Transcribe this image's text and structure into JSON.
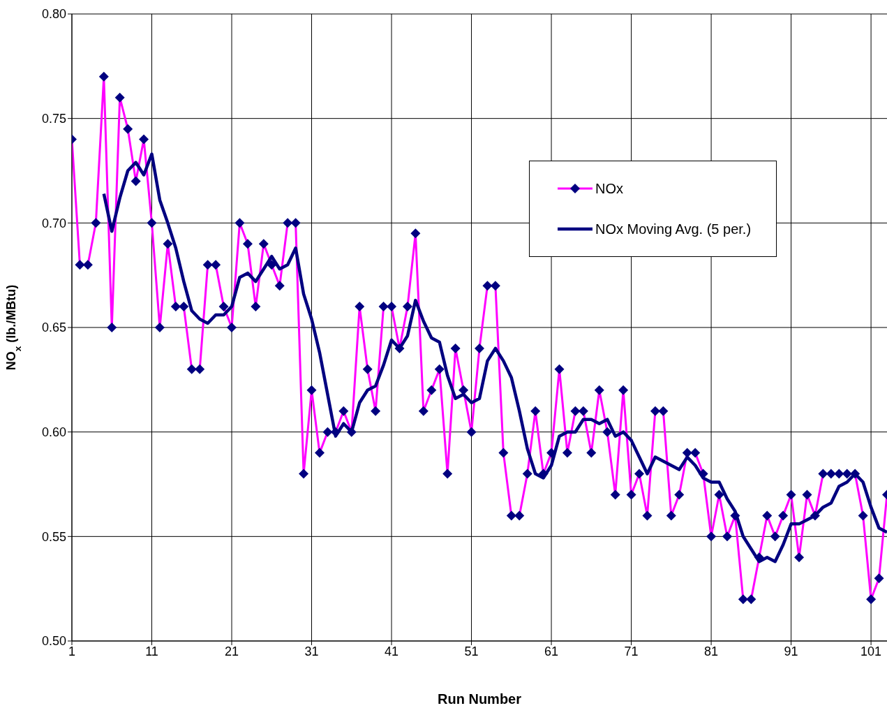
{
  "chart_data": {
    "type": "line",
    "xlabel": "Run Number",
    "ylabel": "NO$_{x}$ (lb./MBtu)",
    "x": [
      1,
      2,
      3,
      4,
      5,
      6,
      7,
      8,
      9,
      10,
      11,
      12,
      13,
      14,
      15,
      16,
      17,
      18,
      19,
      20,
      21,
      22,
      23,
      24,
      25,
      26,
      27,
      28,
      29,
      30,
      31,
      32,
      33,
      34,
      35,
      36,
      37,
      38,
      39,
      40,
      41,
      42,
      43,
      44,
      45,
      46,
      47,
      48,
      49,
      50,
      51,
      52,
      53,
      54,
      55,
      56,
      57,
      58,
      59,
      60,
      61,
      62,
      63,
      64,
      65,
      66,
      67,
      68,
      69,
      70,
      71,
      72,
      73,
      74,
      75,
      76,
      77,
      78,
      79,
      80,
      81,
      82,
      83,
      84,
      85,
      86,
      87,
      88,
      89,
      90,
      91,
      92,
      93,
      94,
      95,
      96,
      97,
      98,
      99,
      100,
      101,
      102,
      103
    ],
    "series": [
      {
        "name": "NOx",
        "color": "#ff00ff",
        "marker": "diamond",
        "values": [
          0.74,
          0.68,
          0.68,
          0.7,
          0.77,
          0.65,
          0.76,
          0.745,
          0.72,
          0.74,
          0.7,
          0.65,
          0.69,
          0.66,
          0.66,
          0.63,
          0.63,
          0.68,
          0.68,
          0.66,
          0.65,
          0.7,
          0.69,
          0.66,
          0.69,
          0.68,
          0.67,
          0.7,
          0.7,
          0.58,
          0.62,
          0.59,
          0.6,
          0.6,
          0.61,
          0.6,
          0.66,
          0.63,
          0.61,
          0.66,
          0.66,
          0.64,
          0.66,
          0.695,
          0.61,
          0.62,
          0.63,
          0.58,
          0.64,
          0.62,
          0.6,
          0.64,
          0.67,
          0.67,
          0.59,
          0.56,
          0.56,
          0.58,
          0.61,
          0.58,
          0.59,
          0.63,
          0.59,
          0.61,
          0.61,
          0.59,
          0.62,
          0.6,
          0.57,
          0.62,
          0.57,
          0.58,
          0.56,
          0.61,
          0.61,
          0.56,
          0.57,
          0.59,
          0.59,
          0.58,
          0.55,
          0.57,
          0.55,
          0.56,
          0.52,
          0.52,
          0.54,
          0.56,
          0.55,
          0.56,
          0.57,
          0.54,
          0.57,
          0.56,
          0.58,
          0.58,
          0.58,
          0.58,
          0.58,
          0.56,
          0.52,
          0.53,
          0.57
        ]
      },
      {
        "name": "NOx Moving Avg. (5 per.)",
        "color": "#000080",
        "marker": "none",
        "values": [
          null,
          null,
          null,
          null,
          0.714,
          0.696,
          0.712,
          0.725,
          0.729,
          0.723,
          0.733,
          0.711,
          0.7,
          0.688,
          0.672,
          0.658,
          0.654,
          0.652,
          0.656,
          0.656,
          0.66,
          0.674,
          0.676,
          0.672,
          0.678,
          0.684,
          0.678,
          0.68,
          0.688,
          0.666,
          0.654,
          0.638,
          0.618,
          0.598,
          0.604,
          0.6,
          0.614,
          0.62,
          0.622,
          0.632,
          0.644,
          0.64,
          0.646,
          0.663,
          0.653,
          0.645,
          0.643,
          0.627,
          0.616,
          0.618,
          0.614,
          0.616,
          0.634,
          0.64,
          0.634,
          0.626,
          0.61,
          0.592,
          0.58,
          0.578,
          0.584,
          0.598,
          0.6,
          0.6,
          0.606,
          0.606,
          0.604,
          0.606,
          0.598,
          0.6,
          0.596,
          0.588,
          0.58,
          0.588,
          0.586,
          0.584,
          0.582,
          0.588,
          0.584,
          0.578,
          0.576,
          0.576,
          0.568,
          0.562,
          0.55,
          0.544,
          0.538,
          0.54,
          0.538,
          0.546,
          0.556,
          0.556,
          0.558,
          0.56,
          0.564,
          0.566,
          0.574,
          0.576,
          0.58,
          0.576,
          0.564,
          0.554,
          0.552
        ]
      }
    ],
    "xlim": [
      1,
      103
    ],
    "xticks": [
      1,
      11,
      21,
      31,
      41,
      51,
      61,
      71,
      81,
      91,
      101
    ],
    "ylim": [
      0.5,
      0.8
    ],
    "yticks": [
      {
        "value": 0.5,
        "label": "0.50"
      },
      {
        "value": 0.55,
        "label": "0.55"
      },
      {
        "value": 0.6,
        "label": "0.60"
      },
      {
        "value": 0.65,
        "label": "0.65"
      },
      {
        "value": 0.7,
        "label": "0.70"
      },
      {
        "value": 0.75,
        "label": "0.75"
      },
      {
        "value": 0.8,
        "label": "0.80"
      }
    ],
    "grid": true,
    "legend": "top right",
    "line_style": "solid"
  }
}
